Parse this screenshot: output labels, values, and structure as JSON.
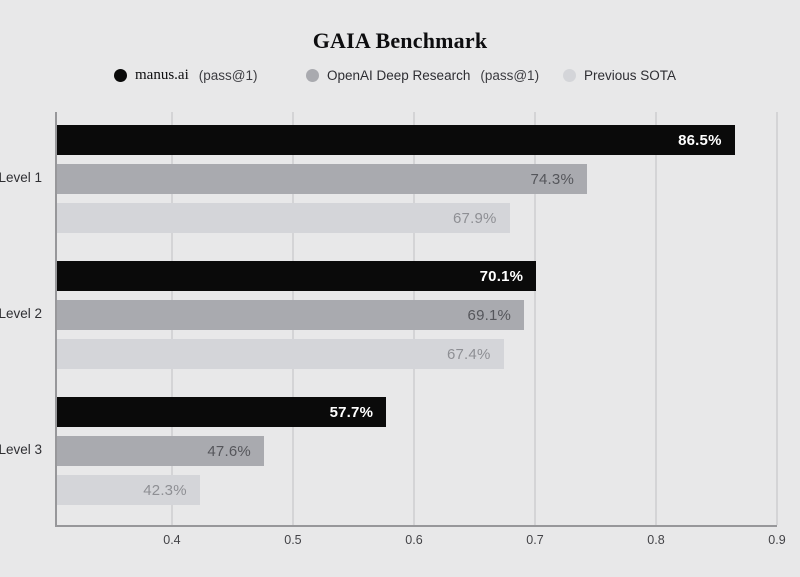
{
  "page": {
    "background": "#e8e8e9"
  },
  "chart_data": {
    "type": "bar",
    "orientation": "horizontal",
    "title": "GAIA Benchmark",
    "categories": [
      "Level 1",
      "Level 2",
      "Level 3"
    ],
    "series": [
      {
        "name": "manus.ai",
        "suffix": "(pass@1)",
        "color": "#0a0a0a",
        "values": [
          0.865,
          0.701,
          0.577
        ],
        "labels": [
          "86.5%",
          "70.1%",
          "57.7%"
        ],
        "label_color": "#ffffff",
        "label_bold": true
      },
      {
        "name": "OpenAI Deep Research",
        "suffix": "(pass@1)",
        "color": "#a9aaaf",
        "values": [
          0.743,
          0.691,
          0.476
        ],
        "labels": [
          "74.3%",
          "69.1%",
          "47.6%"
        ],
        "label_color": "#55565b",
        "label_bold": false
      },
      {
        "name": "Previous SOTA",
        "suffix": "",
        "color": "#d4d5d9",
        "values": [
          0.679,
          0.674,
          0.423
        ],
        "labels": [
          "67.9%",
          "67.4%",
          "42.3%"
        ],
        "label_color": "#8e8f94",
        "label_bold": false
      }
    ],
    "xlim": [
      0.305,
      0.9
    ],
    "xticks": [
      0.4,
      0.5,
      0.6,
      0.7,
      0.8,
      0.9
    ],
    "xtick_labels": [
      "0.4",
      "0.5",
      "0.6",
      "0.7",
      "0.8",
      "0.9"
    ],
    "grid": true,
    "legend_position": "top",
    "xlabel": "",
    "ylabel": ""
  },
  "colors": {
    "grid": "#d4d4d6",
    "axis": "#97979a",
    "tick_label": "#434347",
    "category_label": "#2f2f33"
  }
}
